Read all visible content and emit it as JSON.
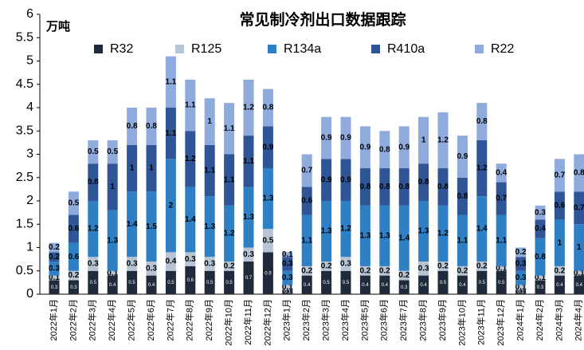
{
  "chart_data": {
    "type": "stacked_bar",
    "title": "常见制冷剂出口数据跟踪",
    "y_label": "万吨",
    "categories": [
      "2022年1月",
      "2022年2月",
      "2022年3月",
      "2022年4月",
      "2022年5月",
      "2022年6月",
      "2022年7月",
      "2022年8月",
      "2022年9月",
      "2022年10月",
      "2022年11月",
      "2022年12月",
      "2023年1月",
      "2023年2月",
      "2023年3月",
      "2023年4月",
      "2023年5月",
      "2023年6月",
      "2023年7月",
      "2023年8月",
      "2023年9月",
      "2023年10月",
      "2023年11月",
      "2023年12月",
      "2024年1月",
      "2024年2月",
      "2024年3月",
      "2024年4月"
    ],
    "series": [
      {
        "name": "R32",
        "color": "#1f2a3a",
        "values": [
          0.3,
          0.3,
          0.5,
          0.4,
          0.5,
          0.4,
          0.5,
          0.6,
          0.5,
          0.5,
          0.7,
          0.9,
          0.1,
          0.4,
          0.5,
          0.5,
          0.4,
          0.4,
          0.3,
          0.4,
          0.5,
          0.4,
          0.5,
          0.5,
          0.1,
          0.3,
          0.4,
          0.4
        ]
      },
      {
        "name": "R125",
        "color": "#b7c4d4",
        "values": [
          0.1,
          0.2,
          0.3,
          0.1,
          0.3,
          0.3,
          0.4,
          0.3,
          0.3,
          0.2,
          0.3,
          0.5,
          0.1,
          0.2,
          0.2,
          0.3,
          0.2,
          0.2,
          0.2,
          0.3,
          0.2,
          0.2,
          0.2,
          0.1,
          0.1,
          0.1,
          0.2,
          0.1
        ]
      },
      {
        "name": "R134a",
        "color": "#2e7fc4",
        "values": [
          0.3,
          0.6,
          1.2,
          1.3,
          1.4,
          1.5,
          2.0,
          1.4,
          1.3,
          1.2,
          1.3,
          1.3,
          0.3,
          1.1,
          1.3,
          1.2,
          1.3,
          1.3,
          1.4,
          1.3,
          1.2,
          1.1,
          1.4,
          1.1,
          0.3,
          0.8,
          1.0,
          1.0
        ]
      },
      {
        "name": "R410a",
        "color": "#2f5597",
        "values": [
          0.2,
          0.6,
          0.8,
          1.0,
          1.0,
          1.0,
          1.1,
          1.2,
          1.1,
          1.1,
          1.1,
          0.9,
          0.3,
          0.6,
          0.9,
          0.9,
          0.8,
          0.8,
          0.8,
          0.8,
          0.8,
          0.8,
          1.2,
          0.7,
          0.3,
          0.4,
          0.6,
          0.7
        ]
      },
      {
        "name": "R22",
        "color": "#8faadc",
        "values": [
          0.2,
          0.5,
          0.5,
          0.5,
          0.8,
          0.8,
          1.1,
          1.1,
          1.0,
          1.1,
          1.2,
          0.8,
          0.1,
          0.7,
          0.9,
          0.9,
          0.9,
          0.8,
          0.9,
          1.0,
          1.2,
          0.9,
          0.8,
          0.4,
          0.2,
          0.3,
          0.7,
          0.8
        ]
      }
    ],
    "ylim": [
      0,
      6
    ],
    "yticks": [
      0,
      0.5,
      1,
      1.5,
      2,
      2.5,
      3,
      3.5,
      4,
      4.5,
      5,
      5.5,
      6
    ]
  }
}
